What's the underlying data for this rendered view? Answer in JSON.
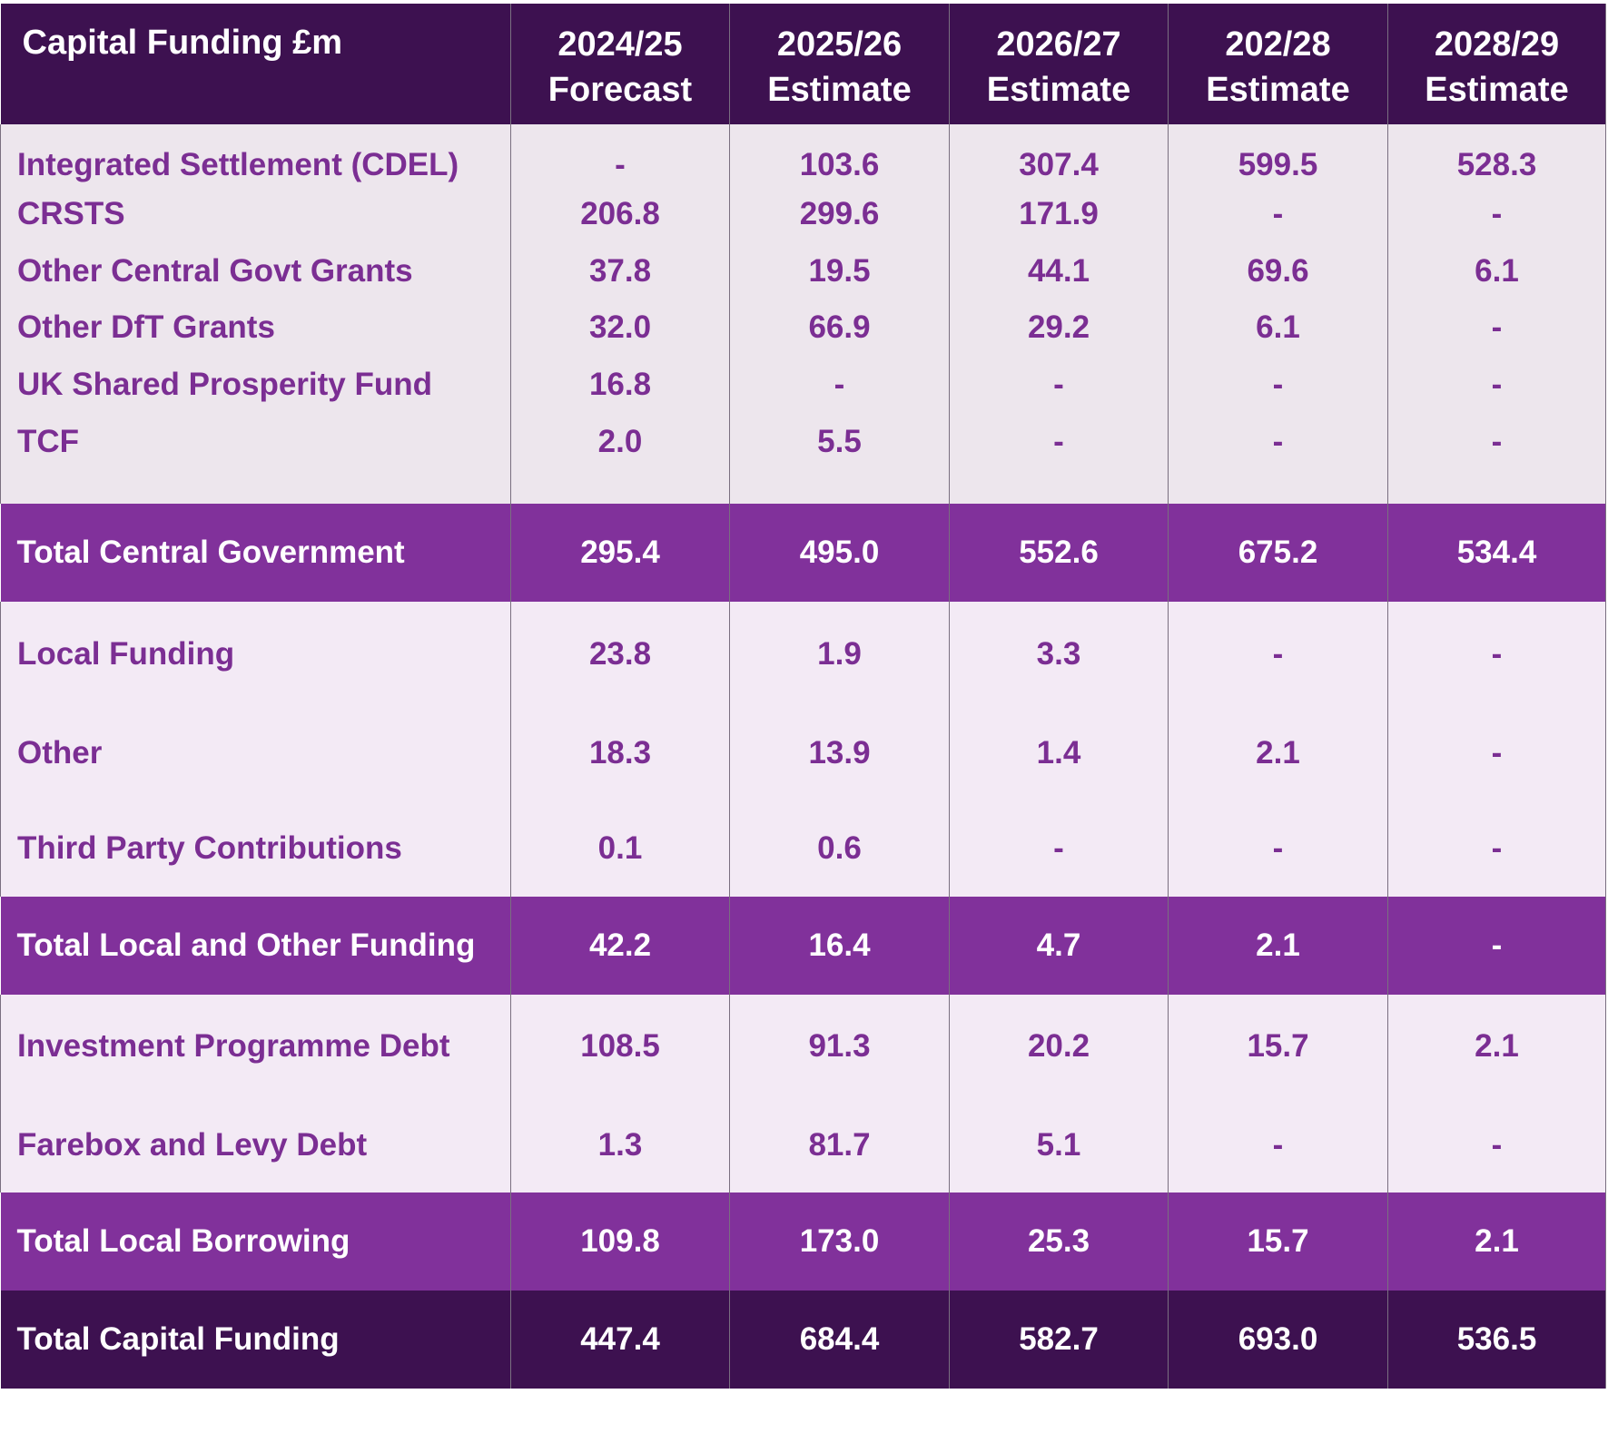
{
  "header": {
    "title": "Capital Funding £m",
    "columns": [
      {
        "year": "2024/25",
        "type": "Forecast"
      },
      {
        "year": "2025/26",
        "type": "Estimate"
      },
      {
        "year": "2026/27",
        "type": "Estimate"
      },
      {
        "year": "202/28",
        "type": "Estimate"
      },
      {
        "year": "2028/29",
        "type": "Estimate"
      }
    ]
  },
  "central_rows": [
    {
      "label": "Integrated Settlement (CDEL)",
      "values": [
        "-",
        "103.6",
        "307.4",
        "599.5",
        "528.3"
      ]
    },
    {
      "label": "CRSTS",
      "values": [
        "206.8",
        "299.6",
        "171.9",
        "-",
        "-"
      ]
    },
    {
      "label": "Other Central Govt Grants",
      "values": [
        "37.8",
        "19.5",
        "44.1",
        "69.6",
        "6.1"
      ]
    },
    {
      "label": "Other DfT Grants",
      "values": [
        "32.0",
        "66.9",
        "29.2",
        "6.1",
        "-"
      ]
    },
    {
      "label": "UK Shared Prosperity Fund",
      "values": [
        "16.8",
        "-",
        "-",
        "-",
        "-"
      ]
    },
    {
      "label": "TCF",
      "values": [
        "2.0",
        "5.5",
        "-",
        "-",
        "-"
      ]
    }
  ],
  "total_central": {
    "label": "Total Central Government",
    "values": [
      "295.4",
      "495.0",
      "552.6",
      "675.2",
      "534.4"
    ]
  },
  "local_rows": [
    {
      "label": "Local Funding",
      "values": [
        "23.8",
        "1.9",
        "3.3",
        "-",
        "-"
      ]
    },
    {
      "label": "Other",
      "values": [
        "18.3",
        "13.9",
        "1.4",
        "2.1",
        "-"
      ]
    },
    {
      "label": "Third Party Contributions",
      "values": [
        "0.1",
        "0.6",
        "-",
        "-",
        "-"
      ]
    }
  ],
  "total_local": {
    "label": "Total Local and Other Funding",
    "values": [
      "42.2",
      "16.4",
      "4.7",
      "2.1",
      "-"
    ]
  },
  "borrowing_rows": [
    {
      "label": "Investment Programme Debt",
      "values": [
        "108.5",
        "91.3",
        "20.2",
        "15.7",
        "2.1"
      ]
    },
    {
      "label": "Farebox and Levy Debt",
      "values": [
        "1.3",
        "81.7",
        "5.1",
        "-",
        "-"
      ]
    }
  ],
  "total_borrowing": {
    "label": "Total Local Borrowing",
    "values": [
      "109.8",
      "173.0",
      "25.3",
      "15.7",
      "2.1"
    ]
  },
  "total_capital": {
    "label": "Total Capital Funding",
    "values": [
      "447.4",
      "684.4",
      "582.7",
      "693.0",
      "536.5"
    ]
  },
  "colors": {
    "header_bg": "#3d1150",
    "total_bg": "#81319b",
    "text_purple": "#7b2e93",
    "section_bg_1": "#ede6ed",
    "section_bg_2": "#f3eaf5"
  }
}
